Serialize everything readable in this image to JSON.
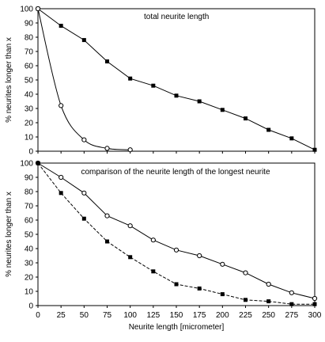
{
  "chart_data": [
    {
      "type": "line",
      "title": "total neurite length",
      "xlabel": "",
      "ylabel": "% neurites longer than x",
      "xlim": [
        0,
        300
      ],
      "ylim": [
        0,
        100
      ],
      "x_ticks": [
        0,
        25,
        50,
        75,
        100,
        125,
        150,
        175,
        200,
        225,
        250,
        275,
        300
      ],
      "y_ticks": [
        0,
        10,
        20,
        30,
        40,
        50,
        60,
        70,
        80,
        90,
        100
      ],
      "y_tick_labels": [
        "0",
        "10",
        "20",
        "30",
        "40",
        "50",
        "60",
        "70",
        "80",
        "90",
        "100"
      ],
      "grid": false,
      "series": [
        {
          "marker": "filled-square",
          "line": "solid",
          "color": "#000000",
          "x": [
            0,
            25,
            50,
            75,
            100,
            125,
            150,
            175,
            200,
            225,
            250,
            275,
            300
          ],
          "y": [
            100,
            88,
            78,
            63,
            51,
            46,
            39,
            35,
            29,
            23,
            15,
            9,
            1
          ],
          "curve": "straight"
        },
        {
          "marker": "open-circle",
          "line": "solid",
          "color": "#000000",
          "x": [
            0,
            25,
            50,
            75,
            100
          ],
          "y": [
            100,
            32,
            8,
            2,
            1
          ],
          "curve": "smooth"
        }
      ]
    },
    {
      "type": "line",
      "title": "comparison of the neurite length of the longest neurite",
      "xlabel": "Neurite length [micrometer]",
      "ylabel": "% neurites longer than x",
      "xlim": [
        0,
        300
      ],
      "ylim": [
        0,
        100
      ],
      "x_ticks": [
        0,
        25,
        50,
        75,
        100,
        125,
        150,
        175,
        200,
        225,
        250,
        275,
        300
      ],
      "x_tick_labels": [
        "0",
        "25",
        "50",
        "75",
        "100",
        "125",
        "150",
        "175",
        "200",
        "225",
        "250",
        "275",
        "300"
      ],
      "y_ticks": [
        0,
        10,
        20,
        30,
        40,
        50,
        60,
        70,
        80,
        90,
        100
      ],
      "y_tick_labels": [
        "0",
        "10",
        "20",
        "30",
        "40",
        "50",
        "60",
        "70",
        "80",
        "90",
        "100"
      ],
      "grid": false,
      "series": [
        {
          "marker": "open-circle",
          "line": "solid",
          "color": "#000000",
          "x": [
            0,
            25,
            50,
            75,
            100,
            125,
            150,
            175,
            200,
            225,
            250,
            275,
            300
          ],
          "y": [
            100,
            90,
            79,
            63,
            56,
            46,
            39,
            35,
            29,
            23,
            15,
            9,
            5
          ],
          "curve": "straight"
        },
        {
          "marker": "filled-square",
          "line": "dashed",
          "color": "#000000",
          "x": [
            0,
            25,
            50,
            75,
            100,
            125,
            150,
            175,
            200,
            225,
            250,
            275,
            300
          ],
          "y": [
            100,
            79,
            61,
            45,
            34,
            24,
            15,
            12,
            8,
            4,
            3,
            1,
            1
          ],
          "curve": "straight"
        }
      ]
    }
  ]
}
